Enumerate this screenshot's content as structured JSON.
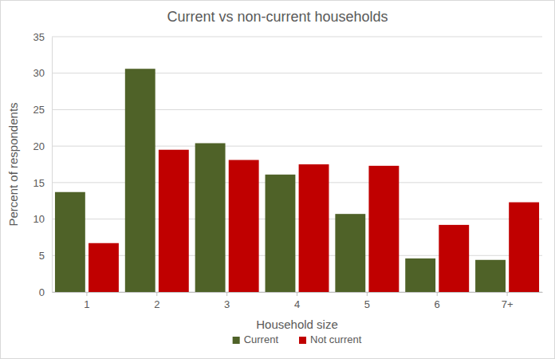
{
  "chart_data": {
    "type": "bar",
    "title": "Current vs non-current households",
    "x_label": "Household size",
    "y_label": "Percent of respondents",
    "categories": [
      "1",
      "2",
      "3",
      "4",
      "5",
      "6",
      "7+"
    ],
    "series": [
      {
        "name": "Current",
        "color": "#4f6228",
        "values": [
          13.7,
          30.6,
          20.4,
          16.1,
          10.7,
          4.6,
          4.4
        ]
      },
      {
        "name": "Not current",
        "color": "#c00000",
        "values": [
          6.7,
          19.5,
          18.1,
          17.5,
          17.3,
          9.2,
          12.3
        ]
      }
    ],
    "ylim": [
      0,
      35
    ],
    "yticks": [
      0,
      5,
      10,
      15,
      20,
      25,
      30,
      35
    ],
    "grid": true,
    "legend": "bottom"
  }
}
